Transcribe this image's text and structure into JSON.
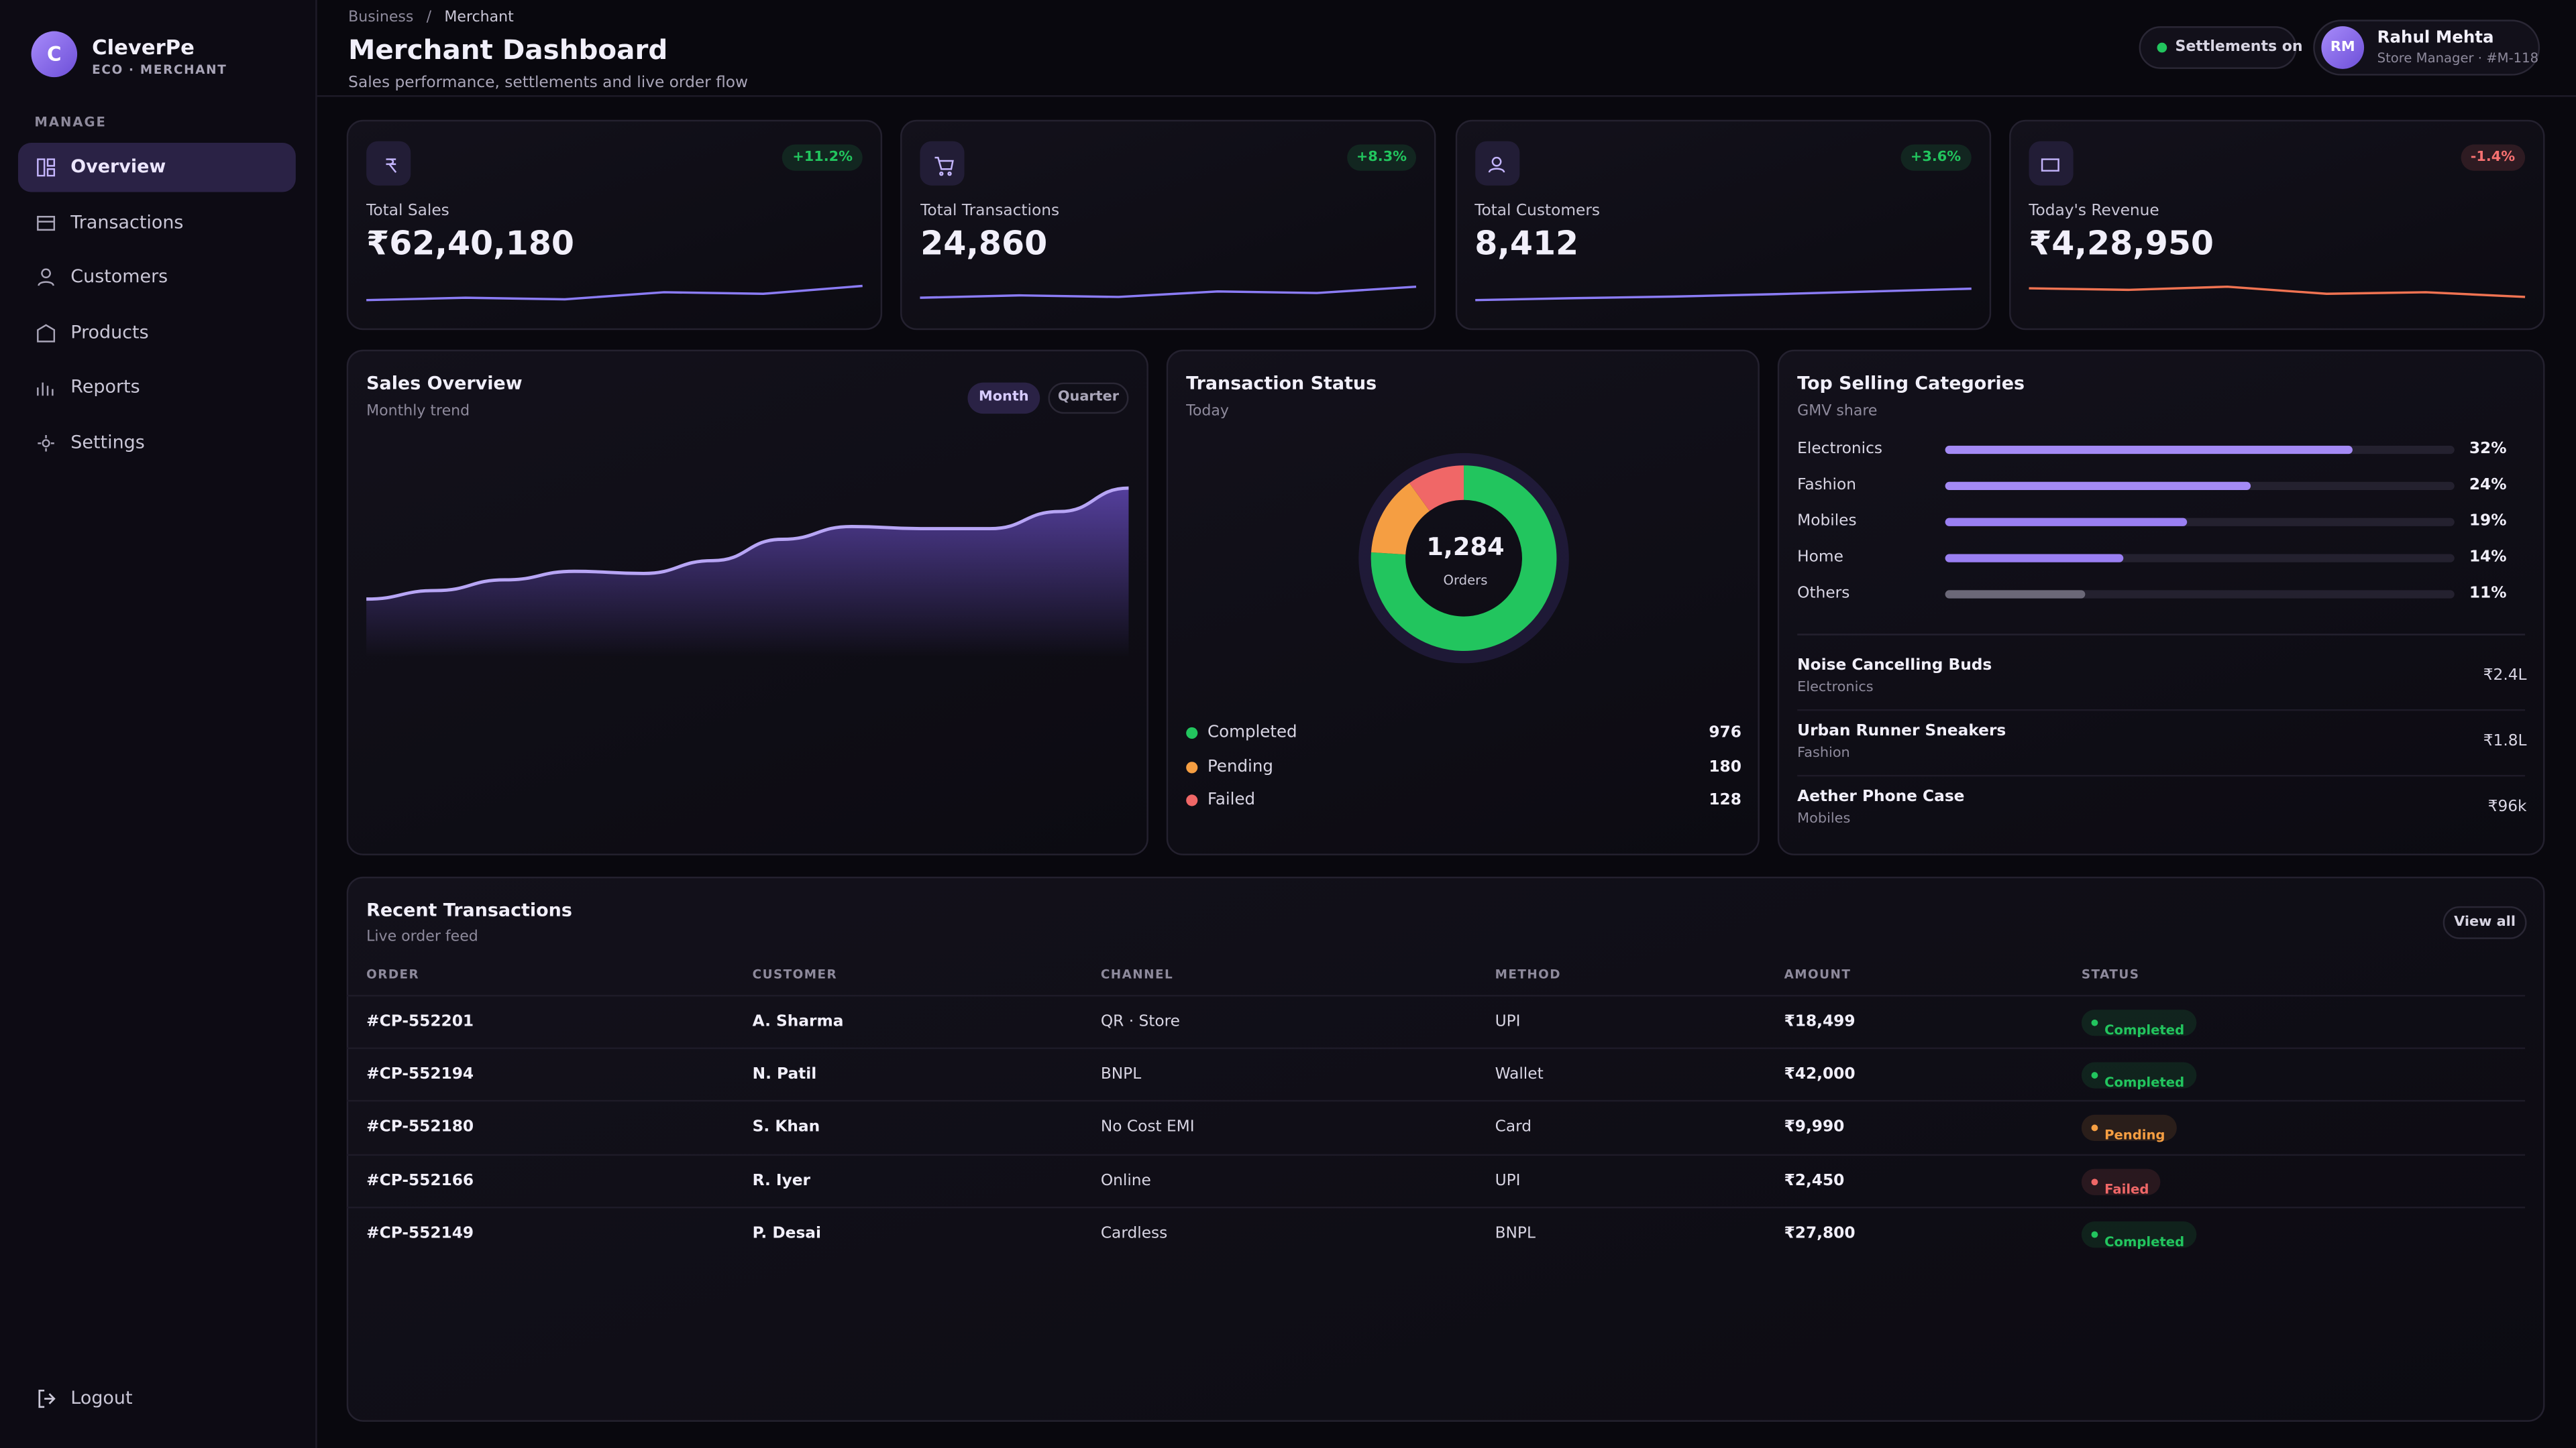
{
  "sidebar": {
    "logo": "C",
    "brand": "CleverPe",
    "tagline": "ECO · MERCHANT",
    "section": "MANAGE",
    "nav": [
      "Overview",
      "Transactions",
      "Customers",
      "Products",
      "Reports",
      "Settings"
    ],
    "logout": "Logout"
  },
  "header": {
    "breadcrumb": [
      "Business",
      "Merchant"
    ],
    "separator": "/",
    "title": "Merchant Dashboard",
    "subtitle": "Sales performance, settlements and live order flow",
    "status": "Settlements on",
    "user": {
      "initials": "RM",
      "name": "Rahul Mehta",
      "role": "Store Manager · #M-118"
    }
  },
  "kpis": [
    {
      "label": "Total Sales",
      "value": "₹62,40,180",
      "change": "+11.2%",
      "badge_color": "#22c55e",
      "color": "#8b7cf6",
      "trend": [
        3,
        3.6,
        3.2,
        5,
        4.6,
        6.6
      ],
      "trend_ylim": [
        0,
        10
      ]
    },
    {
      "label": "Total Transactions",
      "value": "24,860",
      "change": "+8.3%",
      "badge_color": "#22c55e",
      "color": "#8b7cf6",
      "trend": [
        3.6,
        4.2,
        3.8,
        5.2,
        4.8,
        6.4
      ],
      "trend_ylim": [
        0,
        10
      ]
    },
    {
      "label": "Total Customers",
      "value": "8,412",
      "change": "+3.6%",
      "badge_color": "#22c55e",
      "color": "#8b7cf6",
      "trend": [
        3,
        3.5,
        3.9,
        4.5,
        5.2,
        5.9
      ],
      "trend_ylim": [
        0,
        10
      ]
    },
    {
      "label": "Today's Revenue",
      "value": "₹4,28,950",
      "change": "-1.4%",
      "badge_color": "#f87171",
      "color": "#f07352",
      "trend": [
        6,
        5.6,
        6.4,
        4.6,
        5,
        3.8
      ],
      "trend_ylim": [
        0,
        10
      ]
    }
  ],
  "sales_overview": {
    "title": "Sales Overview",
    "subtitle": "Monthly trend",
    "toggles": [
      "Month",
      "Quarter"
    ],
    "chart": {
      "type": "area",
      "values": [
        27,
        31,
        36,
        40,
        39,
        45,
        55,
        61,
        60,
        60,
        68,
        79
      ],
      "ylim": [
        0,
        100
      ],
      "color": "#b7a5f5"
    }
  },
  "transaction_status": {
    "title": "Transaction Status",
    "subtitle": "Today",
    "total": "1,284",
    "total_label": "Orders",
    "chart": {
      "type": "pie",
      "categories": [
        "Completed",
        "Pending",
        "Failed"
      ],
      "values": [
        976,
        180,
        128
      ],
      "colors": [
        "#22c55e",
        "#f59e42",
        "#f06767"
      ]
    }
  },
  "top_categories": {
    "title": "Top Selling Categories",
    "subtitle": "GMV share",
    "chart": {
      "type": "bar",
      "categories": [
        "Electronics",
        "Fashion",
        "Mobiles",
        "Home",
        "Others"
      ],
      "values": [
        32,
        24,
        19,
        14,
        11
      ],
      "value_labels": [
        "32%",
        "24%",
        "19%",
        "14%",
        "11%"
      ],
      "xlim": [
        0,
        40
      ],
      "colors": [
        "#a48af5",
        "#a48af5",
        "#9a7ff2",
        "#9a7ff2",
        "#6b6878"
      ]
    },
    "products": [
      {
        "name": "Noise Cancelling Buds",
        "category": "Electronics",
        "value": "₹2.4L"
      },
      {
        "name": "Urban Runner Sneakers",
        "category": "Fashion",
        "value": "₹1.8L"
      },
      {
        "name": "Aether Phone Case",
        "category": "Mobiles",
        "value": "₹96k"
      }
    ]
  },
  "transactions": {
    "title": "Recent Transactions",
    "subtitle": "Live order feed",
    "action": "View all",
    "columns": [
      "ORDER",
      "CUSTOMER",
      "CHANNEL",
      "METHOD",
      "AMOUNT",
      "STATUS"
    ],
    "rows": [
      [
        "#CP-552201",
        "A. Sharma",
        "QR · Store",
        "UPI",
        "₹18,499",
        "Completed"
      ],
      [
        "#CP-552194",
        "N. Patil",
        "BNPL",
        "Wallet",
        "₹42,000",
        "Completed"
      ],
      [
        "#CP-552180",
        "S. Khan",
        "No Cost EMI",
        "Card",
        "₹9,990",
        "Pending"
      ],
      [
        "#CP-552166",
        "R. Iyer",
        "Online",
        "UPI",
        "₹2,450",
        "Failed"
      ],
      [
        "#CP-552149",
        "P. Desai",
        "Cardless",
        "BNPL",
        "₹27,800",
        "Completed"
      ]
    ],
    "status_colors": [
      "#22c55e",
      "#22c55e",
      "#f59e42",
      "#f06767",
      "#22c55e"
    ]
  }
}
